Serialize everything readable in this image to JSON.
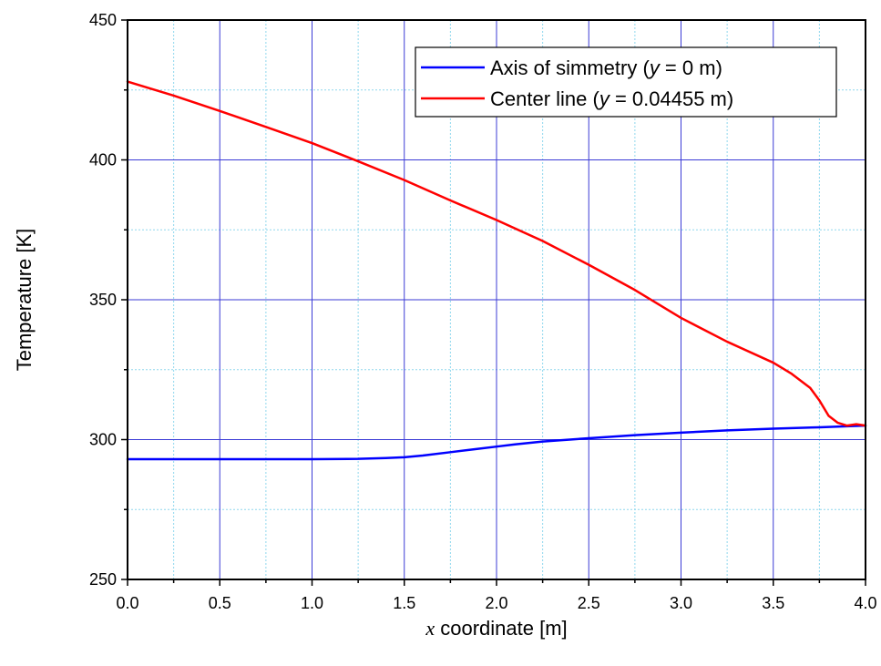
{
  "chart_data": {
    "type": "line",
    "title": "",
    "xlabel_var": "x",
    "xlabel_text": " coordinate [m]",
    "ylabel": "Temperature [K]",
    "xlim": [
      0.0,
      4.0
    ],
    "ylim": [
      250,
      450
    ],
    "x_major_ticks": [
      0.0,
      0.5,
      1.0,
      1.5,
      2.0,
      2.5,
      3.0,
      3.5,
      4.0
    ],
    "x_tick_labels": [
      "0.0",
      "0.5",
      "1.0",
      "1.5",
      "2.0",
      "2.5",
      "3.0",
      "3.5",
      "4.0"
    ],
    "y_major_ticks": [
      250,
      300,
      350,
      400,
      450
    ],
    "y_tick_labels": [
      "250",
      "300",
      "350",
      "400",
      "450"
    ],
    "grid": "major and minor",
    "legend_position": "top-right",
    "series": [
      {
        "name": "Axis of simmetry",
        "legend_var": "y",
        "legend_value": " = 0 m",
        "color": "#0000ff",
        "x": [
          0.0,
          0.25,
          0.5,
          0.75,
          1.0,
          1.25,
          1.4,
          1.5,
          1.6,
          1.75,
          1.9,
          2.0,
          2.1,
          2.25,
          2.5,
          2.75,
          3.0,
          3.25,
          3.5,
          3.75,
          4.0
        ],
        "y": [
          293.0,
          293.0,
          293.0,
          293.0,
          293.0,
          293.1,
          293.4,
          293.7,
          294.3,
          295.5,
          296.7,
          297.5,
          298.3,
          299.3,
          300.5,
          301.6,
          302.5,
          303.3,
          303.9,
          304.4,
          305.0
        ]
      },
      {
        "name": "Center line",
        "legend_var": "y",
        "legend_value": " = 0.04455 m",
        "color": "#ff0000",
        "x": [
          0.0,
          0.25,
          0.5,
          0.75,
          1.0,
          1.25,
          1.5,
          1.75,
          2.0,
          2.25,
          2.5,
          2.75,
          3.0,
          3.25,
          3.5,
          3.6,
          3.7,
          3.75,
          3.8,
          3.85,
          3.9,
          3.95,
          4.0
        ],
        "y": [
          428.0,
          423.0,
          417.5,
          411.8,
          406.0,
          399.5,
          392.8,
          385.5,
          378.5,
          371.0,
          362.5,
          353.5,
          343.5,
          335.0,
          327.5,
          323.5,
          318.5,
          314.0,
          308.5,
          306.0,
          305.0,
          305.5,
          305.0
        ]
      }
    ]
  }
}
